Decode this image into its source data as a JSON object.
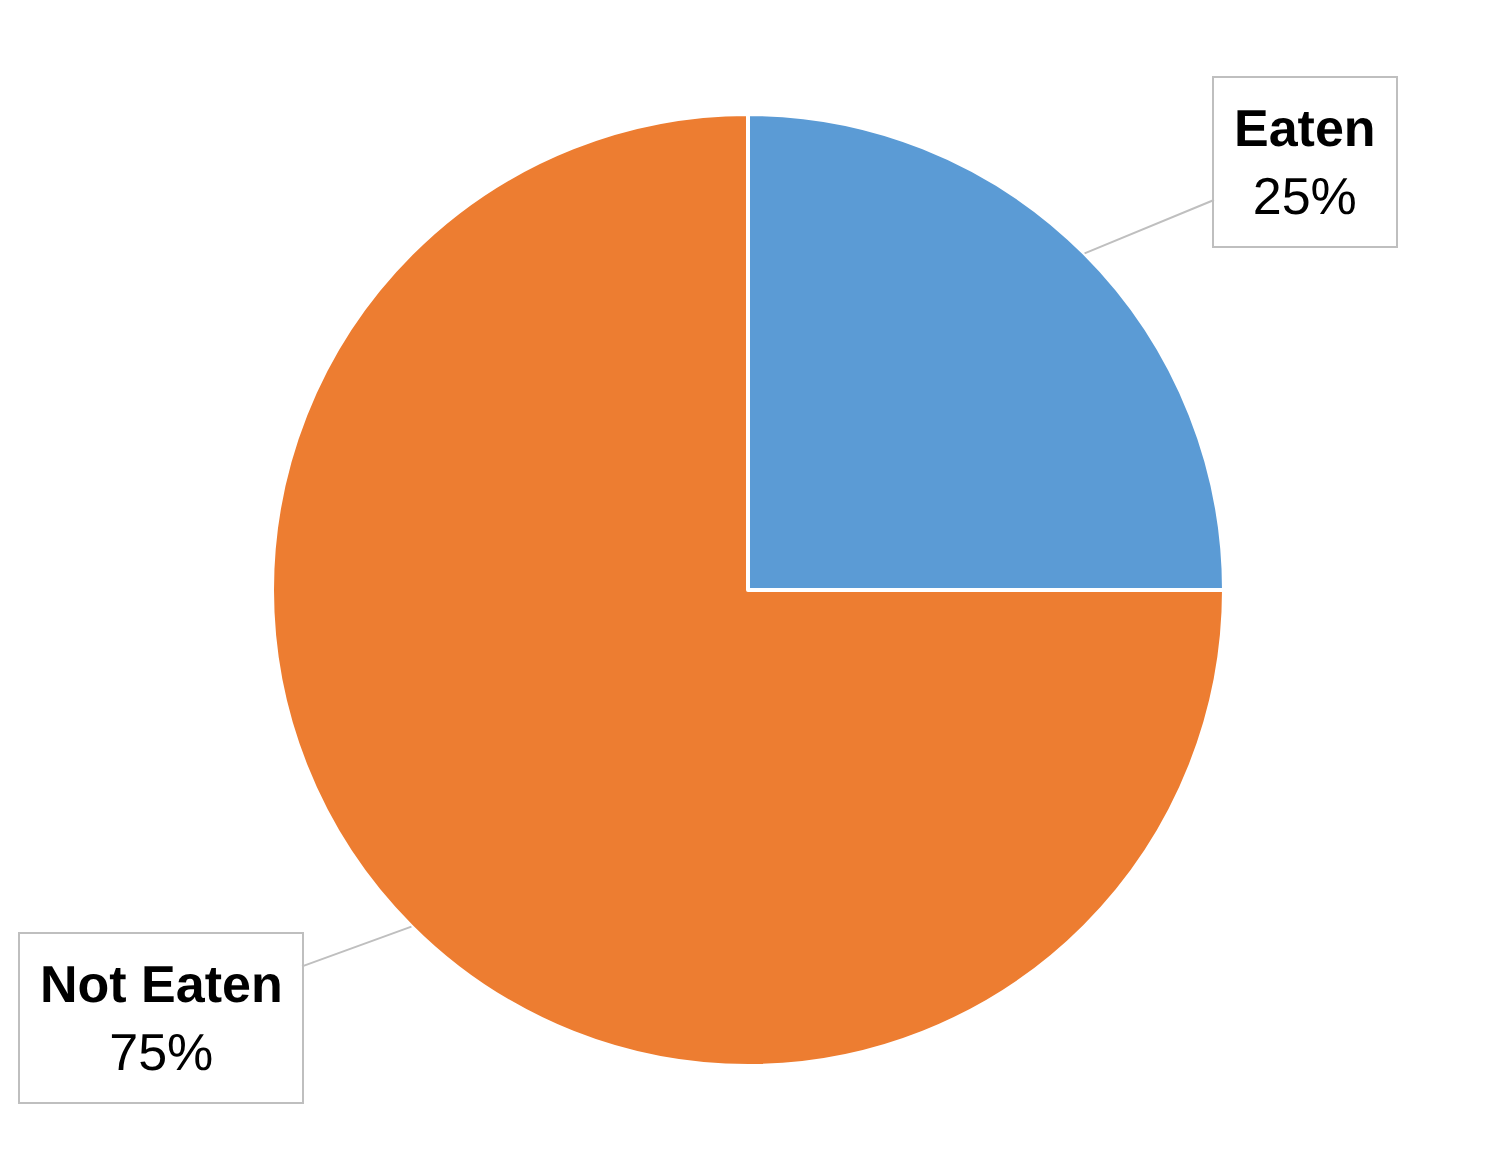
{
  "chart_data": {
    "type": "pie",
    "categories": [
      "Eaten",
      "Not Eaten"
    ],
    "values": [
      25,
      75
    ],
    "colors": [
      "#5b9bd5",
      "#ed7d31"
    ],
    "value_labels": [
      "25%",
      "75%"
    ],
    "legend": false
  }
}
